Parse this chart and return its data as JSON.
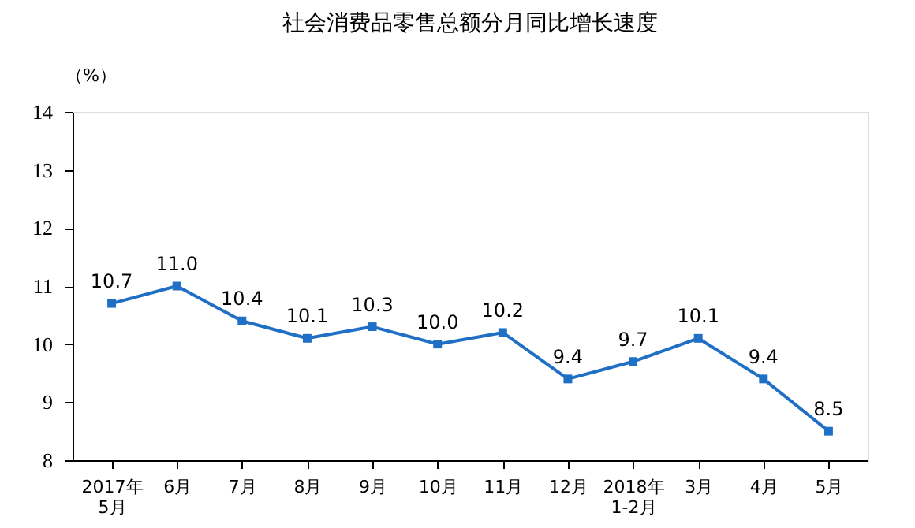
{
  "chart_data": {
    "type": "line",
    "title": "社会消费品零售总额分月同比增长速度",
    "ylabel": "（%）",
    "categories": [
      "2017年\n5月",
      "6月",
      "7月",
      "8月",
      "9月",
      "10月",
      "11月",
      "12月",
      "2018年\n1-2月",
      "3月",
      "4月",
      "5月"
    ],
    "series": [
      {
        "color": "#1f6fc5",
        "values": [
          10.7,
          11.0,
          10.4,
          10.1,
          10.3,
          10.0,
          10.2,
          9.4,
          9.7,
          10.1,
          9.4,
          8.5
        ],
        "value_labels": [
          "10.7",
          "11.0",
          "10.4",
          "10.1",
          "10.3",
          "10.0",
          "10.2",
          "9.4",
          "9.7",
          "10.1",
          "9.4",
          "8.5"
        ]
      }
    ],
    "ylim": [
      8,
      14
    ],
    "yticks": [
      8,
      9,
      10,
      11,
      12,
      13,
      14
    ],
    "grid": false,
    "marker": "square",
    "line_style": "solid"
  }
}
